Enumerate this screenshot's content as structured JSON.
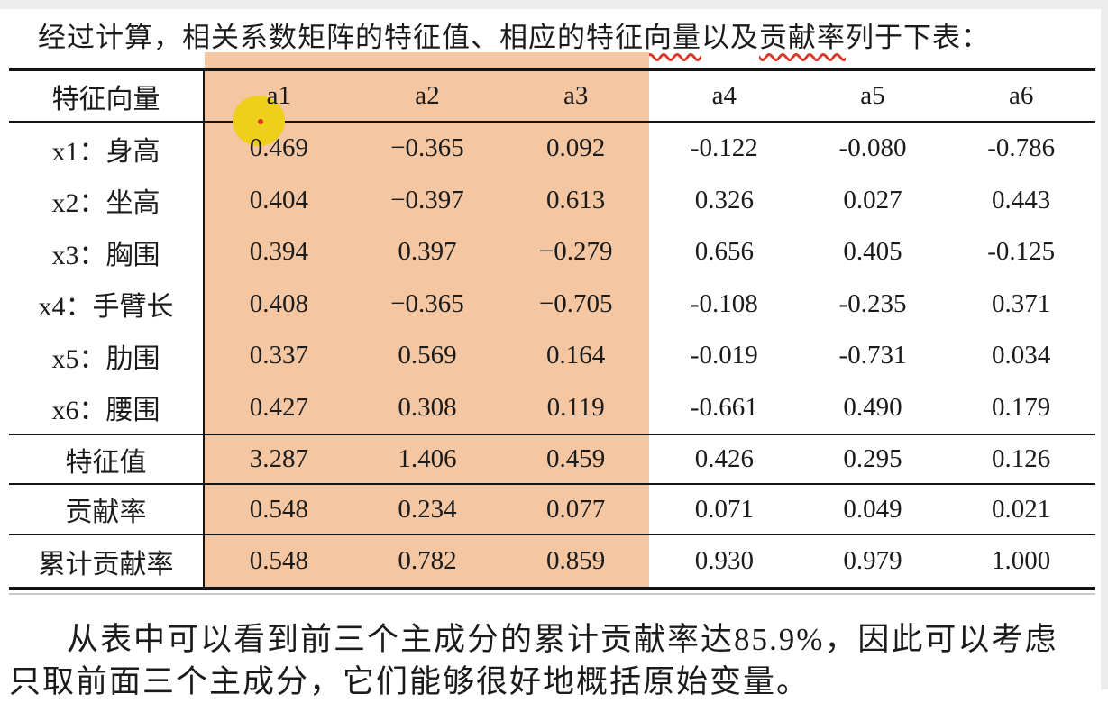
{
  "page": {
    "intro": {
      "prefix": "经过计算，相关系数矩阵",
      "underline1": "的特征值",
      "mid1": "、相应的",
      "underline2": "特征向量",
      "mid2": "以及",
      "underline3": "贡献率",
      "suffix": "列于下表："
    },
    "conclusion": {
      "line1": "从表中可以看到前三个主成分的累计贡献率达85.9%，因此可以考虑",
      "line2": "只取前面三个主成分，它们能够很好地概括原始变量。"
    }
  },
  "table": {
    "header": [
      "特征向量",
      "a1",
      "a2",
      "a3",
      "a4",
      "a5",
      "a6"
    ],
    "rows": [
      {
        "label": "x1：身高",
        "values": [
          "0.469",
          "−0.365",
          "0.092",
          "-0.122",
          "-0.080",
          "-0.786"
        ]
      },
      {
        "label": "x2：坐高",
        "values": [
          "0.404",
          "−0.397",
          "0.613",
          "0.326",
          "0.027",
          "0.443"
        ]
      },
      {
        "label": "x3：胸围",
        "values": [
          "0.394",
          "0.397",
          "−0.279",
          "0.656",
          "0.405",
          "-0.125"
        ]
      },
      {
        "label": "x4：手臂长",
        "values": [
          "0.408",
          "−0.365",
          "−0.705",
          "-0.108",
          "-0.235",
          "0.371"
        ]
      },
      {
        "label": "x5：肋围",
        "values": [
          "0.337",
          "0.569",
          "0.164",
          "-0.019",
          "-0.731",
          "0.034"
        ]
      },
      {
        "label": "x6：腰围",
        "values": [
          "0.427",
          "0.308",
          "0.119",
          "-0.661",
          "0.490",
          "0.179"
        ]
      },
      {
        "label": "特征值",
        "values": [
          "3.287",
          "1.406",
          "0.459",
          "0.426",
          "0.295",
          "0.126"
        ],
        "rule_above": true
      },
      {
        "label": "贡献率",
        "values": [
          "0.548",
          "0.234",
          "0.077",
          "0.071",
          "0.049",
          "0.021"
        ],
        "rule_above": true
      },
      {
        "label": "累计贡献率",
        "values": [
          "0.548",
          "0.782",
          "0.859",
          "0.930",
          "0.979",
          "1.000"
        ],
        "rule_above": true
      }
    ],
    "highlighted_columns": [
      "a1",
      "a2",
      "a3"
    ]
  },
  "annotations": {
    "highlight_color": "#f4c6a2",
    "pointer_dot_color": "#eed01c",
    "pointer_center_color": "#e02f1f",
    "underline_color": "#d93a2b"
  }
}
